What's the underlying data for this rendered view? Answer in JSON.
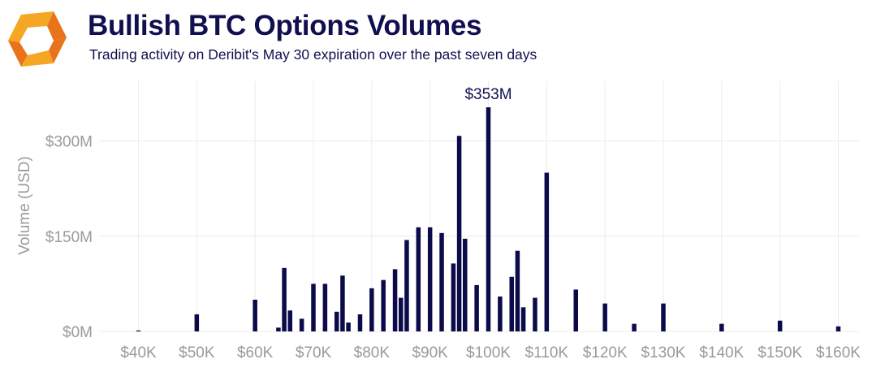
{
  "header": {
    "title": "Bullish BTC Options Volumes",
    "subtitle": "Trading activity on Deribit's May 30 expiration over the past seven days"
  },
  "colors": {
    "bar": "#0b0b4a",
    "title": "#101050",
    "axis_text": "#9a9a9a",
    "grid": "#ececec",
    "logo_orange": "#f5a623",
    "logo_dark_orange": "#e8731a"
  },
  "chart_data": {
    "type": "bar",
    "title": "Bullish BTC Options Volumes",
    "subtitle": "Trading activity on Deribit's May 30 expiration over the past seven days",
    "xlabel": "",
    "ylabel": "Volume (USD)",
    "x_unit": "strike (USD)",
    "y_unit": "USD millions",
    "xlim": [
      37000,
      163500
    ],
    "ylim": [
      0,
      370
    ],
    "x_ticks": [
      {
        "value": 40000,
        "label": "$40K"
      },
      {
        "value": 50000,
        "label": "$50K"
      },
      {
        "value": 60000,
        "label": "$60K"
      },
      {
        "value": 70000,
        "label": "$70K"
      },
      {
        "value": 80000,
        "label": "$80K"
      },
      {
        "value": 90000,
        "label": "$90K"
      },
      {
        "value": 100000,
        "label": "$100K"
      },
      {
        "value": 110000,
        "label": "$110K"
      },
      {
        "value": 120000,
        "label": "$120K"
      },
      {
        "value": 130000,
        "label": "$130K"
      },
      {
        "value": 140000,
        "label": "$140K"
      },
      {
        "value": 150000,
        "label": "$150K"
      },
      {
        "value": 160000,
        "label": "$160K"
      }
    ],
    "y_ticks": [
      {
        "value": 0,
        "label": "$0M"
      },
      {
        "value": 150,
        "label": "$150M"
      },
      {
        "value": 300,
        "label": "$300M"
      }
    ],
    "grid": true,
    "legend": "none",
    "points": [
      {
        "x": 40000,
        "y": 1
      },
      {
        "x": 50000,
        "y": 27
      },
      {
        "x": 60000,
        "y": 50
      },
      {
        "x": 64000,
        "y": 6
      },
      {
        "x": 65000,
        "y": 100
      },
      {
        "x": 66000,
        "y": 33
      },
      {
        "x": 68000,
        "y": 20
      },
      {
        "x": 70000,
        "y": 75
      },
      {
        "x": 72000,
        "y": 75
      },
      {
        "x": 74000,
        "y": 31
      },
      {
        "x": 75000,
        "y": 88
      },
      {
        "x": 76000,
        "y": 14
      },
      {
        "x": 78000,
        "y": 27
      },
      {
        "x": 80000,
        "y": 68
      },
      {
        "x": 82000,
        "y": 81
      },
      {
        "x": 84000,
        "y": 98
      },
      {
        "x": 85000,
        "y": 53
      },
      {
        "x": 86000,
        "y": 144
      },
      {
        "x": 88000,
        "y": 164
      },
      {
        "x": 90000,
        "y": 164
      },
      {
        "x": 92000,
        "y": 155
      },
      {
        "x": 94000,
        "y": 107
      },
      {
        "x": 95000,
        "y": 308
      },
      {
        "x": 96000,
        "y": 146
      },
      {
        "x": 98000,
        "y": 73
      },
      {
        "x": 100000,
        "y": 353
      },
      {
        "x": 102000,
        "y": 55
      },
      {
        "x": 104000,
        "y": 86
      },
      {
        "x": 105000,
        "y": 127
      },
      {
        "x": 106000,
        "y": 38
      },
      {
        "x": 108000,
        "y": 53
      },
      {
        "x": 110000,
        "y": 250
      },
      {
        "x": 115000,
        "y": 66
      },
      {
        "x": 120000,
        "y": 44
      },
      {
        "x": 125000,
        "y": 12
      },
      {
        "x": 130000,
        "y": 44
      },
      {
        "x": 140000,
        "y": 12
      },
      {
        "x": 150000,
        "y": 17
      },
      {
        "x": 160000,
        "y": 8
      }
    ],
    "annotations": [
      {
        "x": 100000,
        "y": 353,
        "text": "$353M"
      }
    ]
  }
}
